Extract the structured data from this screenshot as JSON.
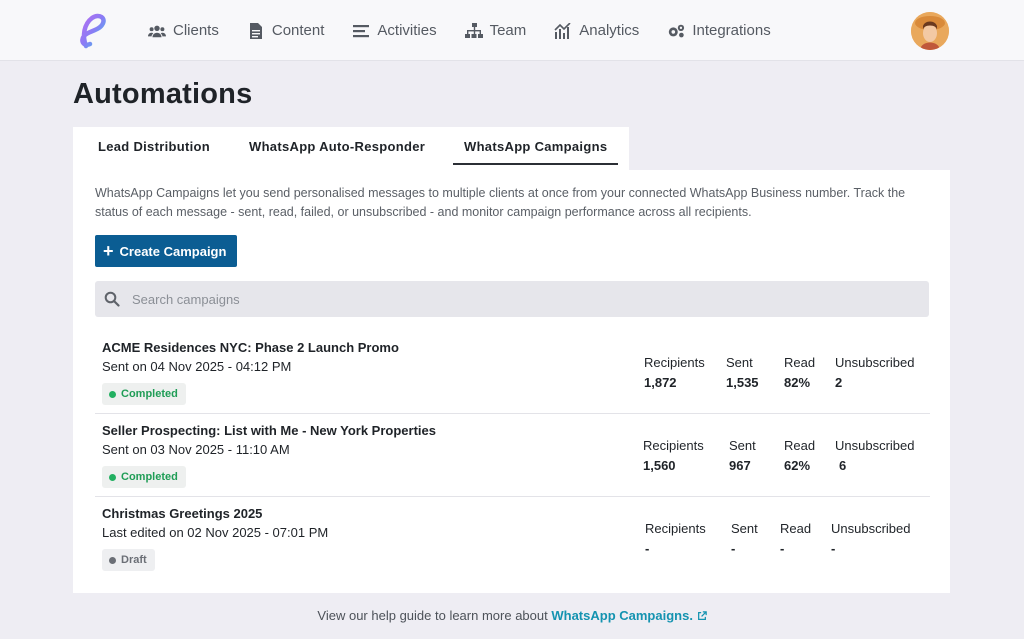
{
  "nav": {
    "items": [
      {
        "label": "Clients",
        "icon": "users-icon"
      },
      {
        "label": "Content",
        "icon": "document-icon"
      },
      {
        "label": "Activities",
        "icon": "list-icon"
      },
      {
        "label": "Team",
        "icon": "sitemap-icon"
      },
      {
        "label": "Analytics",
        "icon": "chart-icon"
      },
      {
        "label": "Integrations",
        "icon": "gears-icon"
      }
    ]
  },
  "page": {
    "title": "Automations"
  },
  "tabs": [
    {
      "label": "Lead Distribution"
    },
    {
      "label": "WhatsApp Auto-Responder"
    },
    {
      "label": "WhatsApp Campaigns",
      "active": true
    }
  ],
  "panel": {
    "description": "WhatsApp Campaigns let you send personalised messages to multiple clients at once from your connected WhatsApp Business number. Track the status of each message - sent, read, failed, or unsubscribed - and monitor campaign performance across all recipients.",
    "create_button": "Create Campaign",
    "search_placeholder": "Search campaigns"
  },
  "stat_labels": {
    "recipients": "Recipients",
    "sent": "Sent",
    "read": "Read",
    "unsubscribed": "Unsubscribed"
  },
  "campaigns": [
    {
      "title": "ACME Residences NYC: Phase 2 Launch Promo",
      "subtitle": "Sent on 04 Nov 2025 - 04:12 PM",
      "status": "Completed",
      "recipients": "1,872",
      "sent": "1,535",
      "read": "82%",
      "unsubscribed": "2"
    },
    {
      "title": "Seller Prospecting: List with Me - New York Properties",
      "subtitle": "Sent on 03 Nov 2025 - 11:10 AM",
      "status": "Completed",
      "recipients": "1,560",
      "sent": "967",
      "read": "62%",
      "unsubscribed": "6"
    },
    {
      "title": "Christmas Greetings 2025",
      "subtitle": "Last edited on 02 Nov 2025 - 07:01 PM",
      "status": "Draft",
      "recipients": "-",
      "sent": "-",
      "read": "-",
      "unsubscribed": "-"
    }
  ],
  "footer": {
    "text": "View our help guide to learn more about",
    "link": "WhatsApp Campaigns."
  },
  "colors": {
    "primary": "#0b5d93",
    "link": "#1493b0",
    "completed": "#22b061",
    "background": "#eeedf3"
  }
}
